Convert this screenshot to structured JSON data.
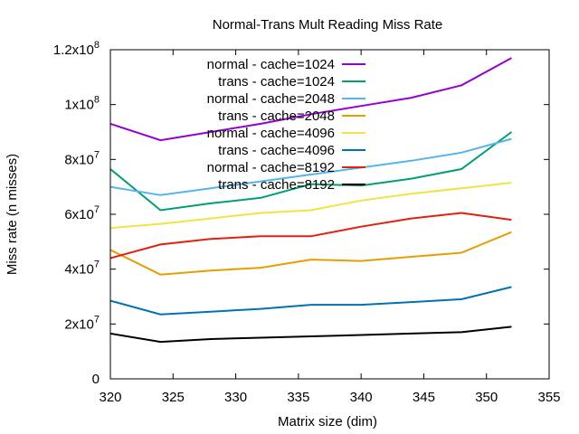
{
  "chart_data": {
    "type": "line",
    "title": "Normal-Trans Mult Reading Miss Rate",
    "xlabel": "Matrix size (dim)",
    "ylabel": "Miss rate (n misses)",
    "xlim": [
      320,
      355
    ],
    "ylim": [
      0,
      120000000
    ],
    "x_ticks": [
      320,
      325,
      330,
      335,
      340,
      345,
      350,
      355
    ],
    "y_ticks": [
      {
        "value": 0,
        "mantissa": "0",
        "exp": ""
      },
      {
        "value": 20000000,
        "mantissa": "2x10",
        "exp": "7"
      },
      {
        "value": 40000000,
        "mantissa": "4x10",
        "exp": "7"
      },
      {
        "value": 60000000,
        "mantissa": "6x10",
        "exp": "7"
      },
      {
        "value": 80000000,
        "mantissa": "8x10",
        "exp": "7"
      },
      {
        "value": 100000000,
        "mantissa": "1x10",
        "exp": "8"
      },
      {
        "value": 120000000,
        "mantissa": "1.2x10",
        "exp": "8"
      }
    ],
    "grid": false,
    "legend_position": "top-left",
    "x": [
      320,
      324,
      328,
      332,
      336,
      340,
      344,
      348,
      352
    ],
    "series": [
      {
        "name": "normal - cache=1024",
        "color": "#9400d3",
        "values": [
          93000000,
          87000000,
          90000000,
          93000000,
          96500000,
          99500000,
          102500000,
          107000000,
          117000000
        ]
      },
      {
        "name": "trans - cache=1024",
        "color": "#009e73",
        "values": [
          76500000,
          61500000,
          64000000,
          66000000,
          71000000,
          70500000,
          73000000,
          76500000,
          90000000
        ]
      },
      {
        "name": "normal - cache=2048",
        "color": "#56b4e9",
        "values": [
          70000000,
          67000000,
          69500000,
          72000000,
          74500000,
          77000000,
          79500000,
          82500000,
          87500000
        ]
      },
      {
        "name": "trans - cache=2048",
        "color": "#e69f00",
        "values": [
          47000000,
          38000000,
          39500000,
          40500000,
          43500000,
          43000000,
          44500000,
          46000000,
          53500000
        ]
      },
      {
        "name": "normal - cache=4096",
        "color": "#f0e442",
        "values": [
          55000000,
          56500000,
          58500000,
          60500000,
          61500000,
          65000000,
          67500000,
          69500000,
          71500000
        ]
      },
      {
        "name": "trans - cache=4096",
        "color": "#0072b2",
        "values": [
          28500000,
          23500000,
          24500000,
          25500000,
          27000000,
          27000000,
          28000000,
          29000000,
          33500000
        ]
      },
      {
        "name": "normal - cache=8192",
        "color": "#e51e10",
        "values": [
          44000000,
          49000000,
          51000000,
          52000000,
          52000000,
          55500000,
          58500000,
          60500000,
          58000000
        ]
      },
      {
        "name": "trans - cache=8192",
        "color": "#000000",
        "values": [
          16500000,
          13500000,
          14500000,
          15000000,
          15500000,
          16000000,
          16500000,
          17000000,
          19000000
        ]
      }
    ]
  }
}
